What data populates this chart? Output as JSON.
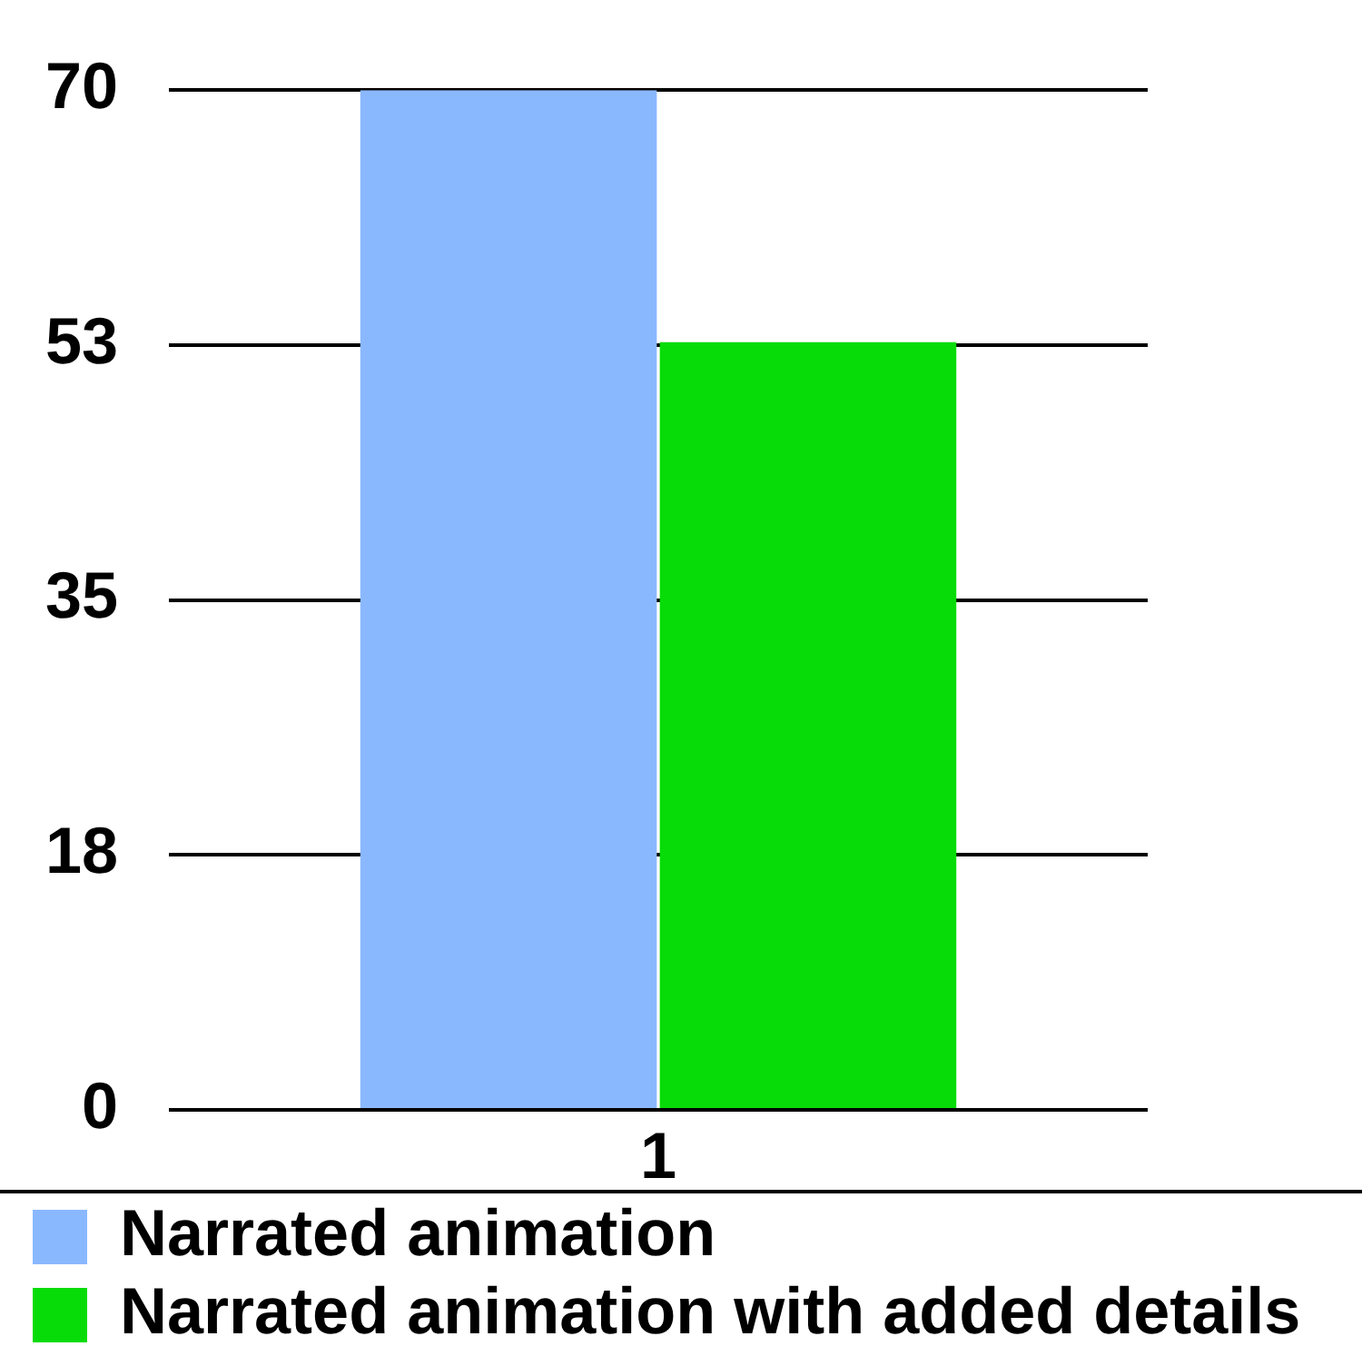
{
  "chart_data": {
    "type": "bar",
    "categories": [
      "1"
    ],
    "series": [
      {
        "name": "Narrated animation",
        "color": "#8ab8ff",
        "values": [
          70
        ]
      },
      {
        "name": "Narrated animation with added details",
        "color": "#08dc08",
        "values": [
          52.7
        ]
      }
    ],
    "ylim": [
      0,
      70
    ],
    "yticks": [
      0,
      {
        "value": 17.5,
        "label": "18"
      },
      35,
      {
        "value": 52.5,
        "label": "53"
      },
      70
    ],
    "grid": "y",
    "legend": "bottom left"
  }
}
